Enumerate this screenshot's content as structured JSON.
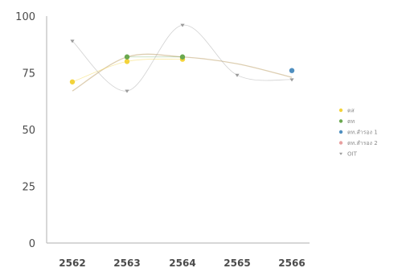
{
  "chart_data": {
    "type": "line",
    "categories": [
      "2562",
      "2563",
      "2564",
      "2565",
      "2566"
    ],
    "ylim": [
      0,
      100
    ],
    "yticks": [
      "0",
      "25",
      "50",
      "75",
      "100"
    ],
    "grid": false,
    "legend_position": "right",
    "series": [
      {
        "name": "ตส",
        "color": "#f3d33a",
        "values": [
          71,
          80,
          81,
          null,
          null
        ]
      },
      {
        "name": "ตท",
        "color": "#6aa84f",
        "values": [
          null,
          82,
          82,
          null,
          null
        ]
      },
      {
        "name": "ตท.สำรอง 1",
        "color": "#4f8fc0",
        "values": [
          null,
          null,
          null,
          null,
          76
        ]
      },
      {
        "name": "ตท.สำรอง 2",
        "color": "#e8a0a0",
        "values": [
          null,
          null,
          null,
          null,
          null
        ]
      },
      {
        "name": "OIT",
        "color": "#9a9a9a",
        "values": [
          89,
          67,
          96,
          74,
          72
        ]
      }
    ],
    "trend": {
      "color": "#d9c9a8",
      "values": [
        67,
        82,
        82,
        79,
        73
      ]
    }
  }
}
